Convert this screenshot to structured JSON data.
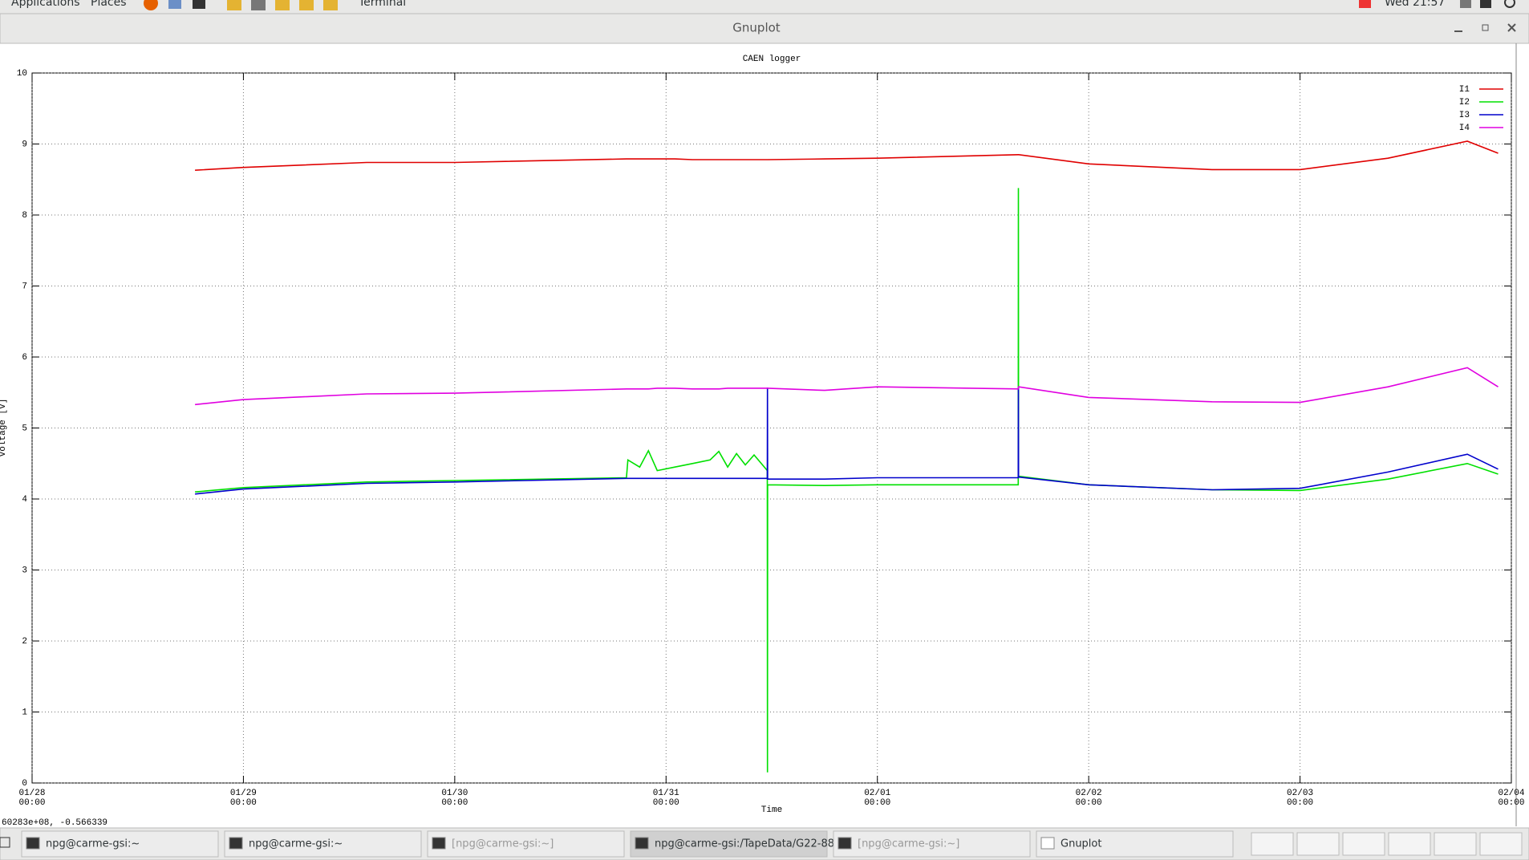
{
  "top_bar": {
    "menus": [
      "Applications",
      "Places",
      "Terminal"
    ],
    "clock": "Wed 21:57"
  },
  "window": {
    "title": "Gnuplot"
  },
  "chart_data": {
    "type": "line",
    "title": "CAEN logger",
    "x_label": "Time",
    "y_label": "Voltage [V]",
    "x": [
      "01/28 18:30",
      "01/29 00:00",
      "01/29 14:00",
      "01/30 00:00",
      "01/30 19:30",
      "01/30 19:40",
      "01/30 21:00",
      "01/30 22:00",
      "01/30 23:00",
      "01/31 01:00",
      "01/31 03:00",
      "01/31 05:00",
      "01/31 06:00",
      "01/31 07:00",
      "01/31 08:00",
      "01/31 09:00",
      "01/31 10:00",
      "01/31 11:30",
      "01/31 11:31",
      "01/31 11:32",
      "01/31 18:00",
      "02/01 00:00",
      "02/01 16:00",
      "02/01 16:01",
      "02/01 16:02",
      "02/02 00:00",
      "02/02 14:00",
      "02/03 00:00",
      "02/03 10:00",
      "02/03 19:00",
      "02/03 22:30"
    ],
    "series": [
      {
        "name": "I1",
        "color": "#e00000",
        "values": [
          8.63,
          8.67,
          8.74,
          8.74,
          8.79,
          8.79,
          8.79,
          8.79,
          8.79,
          8.79,
          8.78,
          8.78,
          8.78,
          8.78,
          8.78,
          8.78,
          8.78,
          8.78,
          8.78,
          8.78,
          8.79,
          8.8,
          8.85,
          8.85,
          8.85,
          8.72,
          8.64,
          8.64,
          8.8,
          9.04,
          8.87
        ]
      },
      {
        "name": "I2",
        "color": "#00e000",
        "values": [
          4.1,
          4.16,
          4.24,
          4.26,
          4.3,
          4.55,
          4.45,
          4.68,
          4.4,
          4.45,
          4.5,
          4.55,
          4.67,
          4.45,
          4.64,
          4.48,
          4.62,
          4.4,
          0.15,
          4.2,
          4.19,
          4.2,
          4.2,
          8.38,
          4.32,
          4.2,
          4.13,
          4.12,
          4.28,
          4.5,
          4.35
        ]
      },
      {
        "name": "I3",
        "color": "#0000cc",
        "values": [
          4.07,
          4.14,
          4.22,
          4.24,
          4.29,
          4.29,
          4.29,
          4.29,
          4.29,
          4.29,
          4.29,
          4.29,
          4.29,
          4.29,
          4.29,
          4.29,
          4.29,
          4.29,
          5.57,
          4.28,
          4.28,
          4.3,
          4.3,
          5.57,
          4.31,
          4.2,
          4.13,
          4.15,
          4.38,
          4.63,
          4.42
        ]
      },
      {
        "name": "I4",
        "color": "#e000e0",
        "values": [
          5.33,
          5.4,
          5.48,
          5.49,
          5.55,
          5.55,
          5.55,
          5.55,
          5.56,
          5.56,
          5.55,
          5.55,
          5.55,
          5.56,
          5.56,
          5.56,
          5.56,
          5.56,
          5.56,
          5.56,
          5.53,
          5.58,
          5.55,
          5.58,
          5.58,
          5.43,
          5.37,
          5.36,
          5.58,
          5.85,
          5.58
        ]
      }
    ],
    "xlim": [
      "01/28\n00:00",
      "02/04\n00:00"
    ],
    "xticks": [
      "01/28\n00:00",
      "01/29\n00:00",
      "01/30\n00:00",
      "01/31\n00:00",
      "02/01\n00:00",
      "02/02\n00:00",
      "02/03\n00:00",
      "02/04\n00:00"
    ],
    "ylim": [
      0,
      10
    ],
    "yticks": [
      0,
      1,
      2,
      3,
      4,
      5,
      6,
      7,
      8,
      9,
      10
    ],
    "grid": true,
    "legend": "top-right"
  },
  "status_text": "60283e+08, -0.566339",
  "taskbar": {
    "items": [
      "npg@carme-gsi:~",
      "npg@carme-gsi:~",
      "[npg@carme-gsi:~]",
      "npg@carme-gsi:/TapeData/G22-88",
      "[npg@carme-gsi:~]",
      "Gnuplot"
    ]
  }
}
